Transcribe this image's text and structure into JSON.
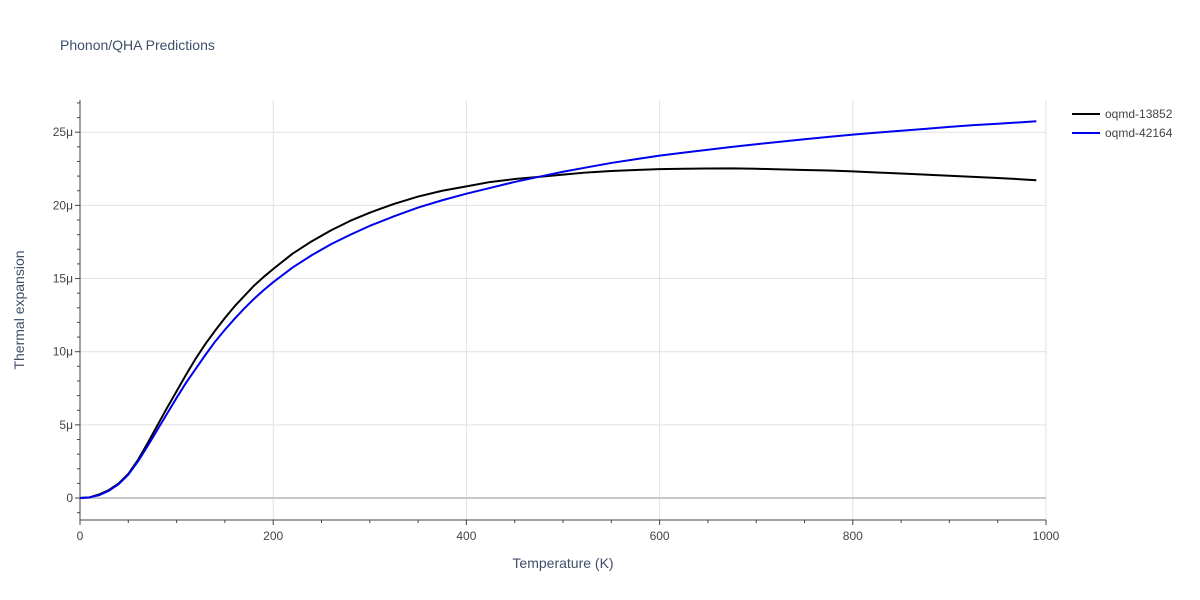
{
  "chart_data": {
    "type": "line",
    "title": "Phonon/QHA Predictions",
    "xlabel": "Temperature (K)",
    "ylabel": "Thermal expansion",
    "xlim": [
      0,
      1000
    ],
    "ylim": [
      -1.5e-06,
      2.72e-05
    ],
    "x_ticks": [
      0,
      200,
      400,
      600,
      800,
      1000
    ],
    "x_tick_labels": [
      "0",
      "200",
      "400",
      "600",
      "800",
      "1000"
    ],
    "y_ticks": [
      0,
      5e-06,
      1e-05,
      1.5e-05,
      2e-05,
      2.5e-05
    ],
    "y_tick_labels": [
      "0",
      "5μ",
      "10μ",
      "15μ",
      "20μ",
      "25μ"
    ],
    "grid": true,
    "legend_position": "top-right",
    "series": [
      {
        "name": "oqmd-13852",
        "color": "#000000",
        "x": [
          0,
          10,
          20,
          30,
          40,
          50,
          60,
          70,
          80,
          90,
          100,
          110,
          120,
          130,
          140,
          150,
          160,
          170,
          180,
          190,
          200,
          220,
          240,
          260,
          280,
          300,
          325,
          350,
          375,
          400,
          425,
          450,
          475,
          500,
          525,
          550,
          575,
          600,
          625,
          650,
          675,
          700,
          725,
          750,
          775,
          800,
          825,
          850,
          875,
          900,
          925,
          950,
          975,
          990
        ],
        "y": [
          0,
          5e-08,
          2.5e-07,
          5.5e-07,
          1e-06,
          1.65e-06,
          2.6e-06,
          3.75e-06,
          4.95e-06,
          6.15e-06,
          7.3e-06,
          8.45e-06,
          9.55e-06,
          1.055e-05,
          1.145e-05,
          1.23e-05,
          1.31e-05,
          1.38e-05,
          1.45e-05,
          1.51e-05,
          1.565e-05,
          1.67e-05,
          1.755e-05,
          1.83e-05,
          1.895e-05,
          1.95e-05,
          2.01e-05,
          2.06e-05,
          2.1e-05,
          2.13e-05,
          2.16e-05,
          2.18e-05,
          2.195e-05,
          2.21e-05,
          2.225e-05,
          2.235e-05,
          2.242e-05,
          2.248e-05,
          2.25e-05,
          2.252e-05,
          2.253e-05,
          2.25e-05,
          2.246e-05,
          2.242e-05,
          2.238e-05,
          2.232e-05,
          2.225e-05,
          2.218e-05,
          2.21e-05,
          2.202e-05,
          2.195e-05,
          2.187e-05,
          2.178e-05,
          2.172e-05
        ]
      },
      {
        "name": "oqmd-42164",
        "color": "#0000ee",
        "x": [
          0,
          10,
          20,
          30,
          40,
          50,
          60,
          70,
          80,
          90,
          100,
          110,
          120,
          130,
          140,
          150,
          160,
          170,
          180,
          190,
          200,
          220,
          240,
          260,
          280,
          300,
          325,
          350,
          375,
          400,
          425,
          450,
          475,
          500,
          525,
          550,
          575,
          600,
          625,
          650,
          675,
          700,
          725,
          750,
          775,
          800,
          825,
          850,
          875,
          900,
          925,
          950,
          975,
          990
        ],
        "y": [
          0,
          5e-08,
          2e-07,
          5e-07,
          9.5e-07,
          1.6e-06,
          2.5e-06,
          3.55e-06,
          4.65e-06,
          5.75e-06,
          6.85e-06,
          7.9e-06,
          8.85e-06,
          9.8e-06,
          1.07e-05,
          1.15e-05,
          1.225e-05,
          1.295e-05,
          1.36e-05,
          1.42e-05,
          1.475e-05,
          1.575e-05,
          1.66e-05,
          1.735e-05,
          1.8e-05,
          1.86e-05,
          1.925e-05,
          1.985e-05,
          2.035e-05,
          2.08e-05,
          2.12e-05,
          2.16e-05,
          2.195e-05,
          2.23e-05,
          2.26e-05,
          2.29e-05,
          2.315e-05,
          2.34e-05,
          2.36e-05,
          2.38e-05,
          2.4e-05,
          2.418e-05,
          2.435e-05,
          2.452e-05,
          2.468e-05,
          2.483e-05,
          2.497e-05,
          2.51e-05,
          2.523e-05,
          2.536e-05,
          2.548e-05,
          2.558e-05,
          2.568e-05,
          2.575e-05
        ]
      }
    ]
  }
}
